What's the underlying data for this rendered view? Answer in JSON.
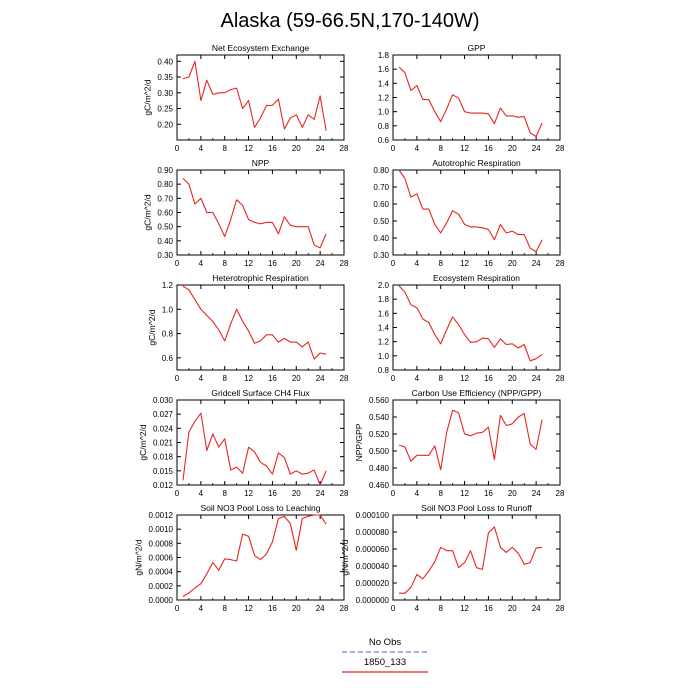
{
  "title": "Alaska (59-66.5N,170-140W)",
  "colors": {
    "model": "#e8251f",
    "obs": "#7777ee",
    "axis": "#000000"
  },
  "legend": [
    {
      "label": "No Obs",
      "color": "#7777ee",
      "dash": true
    },
    {
      "label": "1850_133",
      "color": "#e8251f",
      "dash": false
    }
  ],
  "chart_data": [
    {
      "type": "line",
      "title": "Net Ecosystem Exchange",
      "ylabel": "gC/m^2/d",
      "xlim": [
        0,
        28
      ],
      "xticks": [
        "0",
        "4",
        "8",
        "12",
        "16",
        "20",
        "24",
        "28"
      ],
      "ylim": [
        0.15,
        0.42
      ],
      "yticks": [
        "0.20",
        "0.25",
        "0.30",
        "0.35",
        "0.40"
      ],
      "x": [
        1,
        2,
        3,
        4,
        5,
        6,
        7,
        8,
        9,
        10,
        11,
        12,
        13,
        14,
        15,
        16,
        17,
        18,
        19,
        20,
        21,
        22,
        23,
        24,
        25
      ],
      "series": [
        {
          "values": [
            0.345,
            0.35,
            0.4,
            0.275,
            0.34,
            0.295,
            0.3,
            0.3,
            0.31,
            0.315,
            0.25,
            0.275,
            0.19,
            0.22,
            0.26,
            0.26,
            0.28,
            0.185,
            0.22,
            0.23,
            0.19,
            0.23,
            0.215,
            0.29,
            0.18
          ]
        }
      ]
    },
    {
      "type": "line",
      "title": "GPP",
      "ylabel": "",
      "xlim": [
        0,
        28
      ],
      "xticks": [
        "0",
        "4",
        "8",
        "12",
        "16",
        "20",
        "24",
        "28"
      ],
      "ylim": [
        0.6,
        1.8
      ],
      "yticks": [
        "0.6",
        "0.8",
        "1.0",
        "1.2",
        "1.4",
        "1.6",
        "1.8"
      ],
      "x": [
        1,
        2,
        3,
        4,
        5,
        6,
        7,
        8,
        9,
        10,
        11,
        12,
        13,
        14,
        15,
        16,
        17,
        18,
        19,
        20,
        21,
        22,
        23,
        24,
        25
      ],
      "series": [
        {
          "values": [
            1.63,
            1.55,
            1.3,
            1.37,
            1.17,
            1.17,
            1.0,
            0.86,
            1.04,
            1.24,
            1.19,
            1.0,
            0.98,
            0.98,
            0.98,
            0.97,
            0.83,
            1.05,
            0.94,
            0.94,
            0.92,
            0.93,
            0.7,
            0.65,
            0.84
          ]
        }
      ]
    },
    {
      "type": "line",
      "title": "NPP",
      "ylabel": "gC/m^2/d",
      "xlim": [
        0,
        28
      ],
      "xticks": [
        "0",
        "4",
        "8",
        "12",
        "16",
        "20",
        "24",
        "28"
      ],
      "ylim": [
        0.3,
        0.9
      ],
      "yticks": [
        "0.30",
        "0.40",
        "0.50",
        "0.60",
        "0.70",
        "0.80",
        "0.90"
      ],
      "x": [
        1,
        2,
        3,
        4,
        5,
        6,
        7,
        8,
        9,
        10,
        11,
        12,
        13,
        14,
        15,
        16,
        17,
        18,
        19,
        20,
        21,
        22,
        23,
        24,
        25
      ],
      "series": [
        {
          "values": [
            0.84,
            0.8,
            0.66,
            0.7,
            0.6,
            0.6,
            0.52,
            0.43,
            0.55,
            0.69,
            0.65,
            0.55,
            0.53,
            0.52,
            0.53,
            0.53,
            0.45,
            0.57,
            0.51,
            0.5,
            0.5,
            0.5,
            0.37,
            0.35,
            0.45
          ]
        }
      ]
    },
    {
      "type": "line",
      "title": "Autotrophic Respiration",
      "ylabel": "",
      "xlim": [
        0,
        28
      ],
      "xticks": [
        "0",
        "4",
        "8",
        "12",
        "16",
        "20",
        "24",
        "28"
      ],
      "ylim": [
        0.3,
        0.8
      ],
      "yticks": [
        "0.30",
        "0.40",
        "0.50",
        "0.60",
        "0.70",
        "0.80"
      ],
      "x": [
        1,
        2,
        3,
        4,
        5,
        6,
        7,
        8,
        9,
        10,
        11,
        12,
        13,
        14,
        15,
        16,
        17,
        18,
        19,
        20,
        21,
        22,
        23,
        24,
        25
      ],
      "series": [
        {
          "values": [
            0.8,
            0.75,
            0.64,
            0.66,
            0.57,
            0.57,
            0.48,
            0.43,
            0.49,
            0.56,
            0.54,
            0.48,
            0.465,
            0.465,
            0.46,
            0.45,
            0.39,
            0.48,
            0.43,
            0.44,
            0.42,
            0.42,
            0.34,
            0.32,
            0.39
          ]
        }
      ]
    },
    {
      "type": "line",
      "title": "Heterotrophic Respiration",
      "ylabel": "gC/m^2/d",
      "xlim": [
        0,
        28
      ],
      "xticks": [
        "0",
        "4",
        "8",
        "12",
        "16",
        "20",
        "24",
        "28"
      ],
      "ylim": [
        0.5,
        1.2
      ],
      "yticks": [
        "0.6",
        "0.8",
        "1.0",
        "1.2"
      ],
      "x": [
        1,
        2,
        3,
        4,
        5,
        6,
        7,
        8,
        9,
        10,
        11,
        12,
        13,
        14,
        15,
        16,
        17,
        18,
        19,
        20,
        21,
        22,
        23,
        24,
        25
      ],
      "series": [
        {
          "values": [
            1.19,
            1.16,
            1.08,
            1.0,
            0.95,
            0.9,
            0.83,
            0.74,
            0.88,
            1.0,
            0.9,
            0.82,
            0.72,
            0.74,
            0.79,
            0.79,
            0.73,
            0.76,
            0.73,
            0.73,
            0.69,
            0.73,
            0.59,
            0.64,
            0.63
          ]
        }
      ]
    },
    {
      "type": "line",
      "title": "Ecosystem Respiration",
      "ylabel": "",
      "xlim": [
        0,
        28
      ],
      "xticks": [
        "0",
        "4",
        "8",
        "12",
        "16",
        "20",
        "24",
        "28"
      ],
      "ylim": [
        0.8,
        2.0
      ],
      "yticks": [
        "0.8",
        "1.0",
        "1.2",
        "1.4",
        "1.6",
        "1.8",
        "2.0"
      ],
      "x": [
        1,
        2,
        3,
        4,
        5,
        6,
        7,
        8,
        9,
        10,
        11,
        12,
        13,
        14,
        15,
        16,
        17,
        18,
        19,
        20,
        21,
        22,
        23,
        24,
        25
      ],
      "series": [
        {
          "values": [
            1.99,
            1.9,
            1.72,
            1.68,
            1.52,
            1.47,
            1.3,
            1.17,
            1.37,
            1.55,
            1.44,
            1.3,
            1.19,
            1.2,
            1.25,
            1.24,
            1.12,
            1.24,
            1.16,
            1.17,
            1.11,
            1.16,
            0.93,
            0.96,
            1.02
          ]
        }
      ]
    },
    {
      "type": "line",
      "title": "Gridcell Surface CH4 Flux",
      "ylabel": "gC/m^2/d",
      "xlim": [
        0,
        28
      ],
      "xticks": [
        "0",
        "4",
        "8",
        "12",
        "16",
        "20",
        "24",
        "28"
      ],
      "ylim": [
        0.012,
        0.03
      ],
      "yticks": [
        "0.012",
        "0.015",
        "0.018",
        "0.021",
        "0.024",
        "0.027",
        "0.030"
      ],
      "x": [
        1,
        2,
        3,
        4,
        5,
        6,
        7,
        8,
        9,
        10,
        11,
        12,
        13,
        14,
        15,
        16,
        17,
        18,
        19,
        20,
        21,
        22,
        23,
        24,
        25
      ],
      "series": [
        {
          "values": [
            0.013,
            0.0232,
            0.0255,
            0.0272,
            0.0193,
            0.0228,
            0.02,
            0.0218,
            0.0152,
            0.0158,
            0.0145,
            0.02,
            0.019,
            0.0168,
            0.016,
            0.0143,
            0.0188,
            0.0178,
            0.0143,
            0.015,
            0.0143,
            0.0145,
            0.0152,
            0.012,
            0.015
          ]
        }
      ]
    },
    {
      "type": "line",
      "title": "Carbon Use Efficiency (NPP/GPP)",
      "ylabel": "NPP/GPP",
      "xlim": [
        0,
        28
      ],
      "xticks": [
        "0",
        "4",
        "8",
        "12",
        "16",
        "20",
        "24",
        "28"
      ],
      "ylim": [
        0.46,
        0.56
      ],
      "yticks": [
        "0.460",
        "0.480",
        "0.500",
        "0.520",
        "0.540",
        "0.560"
      ],
      "x": [
        1,
        2,
        3,
        4,
        5,
        6,
        7,
        8,
        9,
        10,
        11,
        12,
        13,
        14,
        15,
        16,
        17,
        18,
        19,
        20,
        21,
        22,
        23,
        24,
        25
      ],
      "series": [
        {
          "values": [
            0.507,
            0.505,
            0.488,
            0.495,
            0.495,
            0.495,
            0.506,
            0.478,
            0.522,
            0.548,
            0.545,
            0.52,
            0.518,
            0.521,
            0.522,
            0.528,
            0.49,
            0.542,
            0.53,
            0.532,
            0.54,
            0.544,
            0.508,
            0.502,
            0.537
          ]
        }
      ]
    },
    {
      "type": "line",
      "title": "Soil NO3 Pool Loss to Leaching",
      "ylabel": "gN/m^2/d",
      "xlim": [
        0,
        28
      ],
      "xticks": [
        "0",
        "4",
        "8",
        "12",
        "16",
        "20",
        "24",
        "28"
      ],
      "ylim": [
        0.0,
        0.0012
      ],
      "yticks": [
        "0.0000",
        "0.0002",
        "0.0004",
        "0.0006",
        "0.0008",
        "0.0010",
        "0.0012"
      ],
      "x": [
        1,
        2,
        3,
        4,
        5,
        6,
        7,
        8,
        9,
        10,
        11,
        12,
        13,
        14,
        15,
        16,
        17,
        18,
        19,
        20,
        21,
        22,
        23,
        24,
        25
      ],
      "series": [
        {
          "values": [
            5e-05,
            0.0001,
            0.00017,
            0.00023,
            0.00037,
            0.00053,
            0.00042,
            0.00058,
            0.00057,
            0.00055,
            0.00093,
            0.0009,
            0.00063,
            0.00057,
            0.00065,
            0.00082,
            0.00115,
            0.00118,
            0.00108,
            0.0007,
            0.00115,
            0.00118,
            0.0012,
            0.0012,
            0.00107
          ]
        }
      ]
    },
    {
      "type": "line",
      "title": "Soil NO3 Pool Loss to Runoff",
      "ylabel": "gN/m^2/d",
      "xlim": [
        0,
        28
      ],
      "xticks": [
        "0",
        "4",
        "8",
        "12",
        "16",
        "20",
        "24",
        "28"
      ],
      "ylim": [
        0.0,
        0.0001
      ],
      "yticks": [
        "0.000000",
        "0.000020",
        "0.000040",
        "0.000060",
        "0.000080",
        "0.000100"
      ],
      "x": [
        1,
        2,
        3,
        4,
        5,
        6,
        7,
        8,
        9,
        10,
        11,
        12,
        13,
        14,
        15,
        16,
        17,
        18,
        19,
        20,
        21,
        22,
        23,
        24,
        25
      ],
      "series": [
        {
          "values": [
            8e-06,
            8e-06,
            1.5e-05,
            3e-05,
            2.5e-05,
            3.4e-05,
            4.5e-05,
            6.2e-05,
            5.8e-05,
            5.8e-05,
            3.8e-05,
            4.4e-05,
            5.8e-05,
            3.8e-05,
            3.6e-05,
            7.9e-05,
            8.6e-05,
            6.2e-05,
            5.6e-05,
            6.2e-05,
            5.5e-05,
            4.2e-05,
            4.4e-05,
            6.1e-05,
            6.2e-05
          ]
        }
      ]
    }
  ]
}
